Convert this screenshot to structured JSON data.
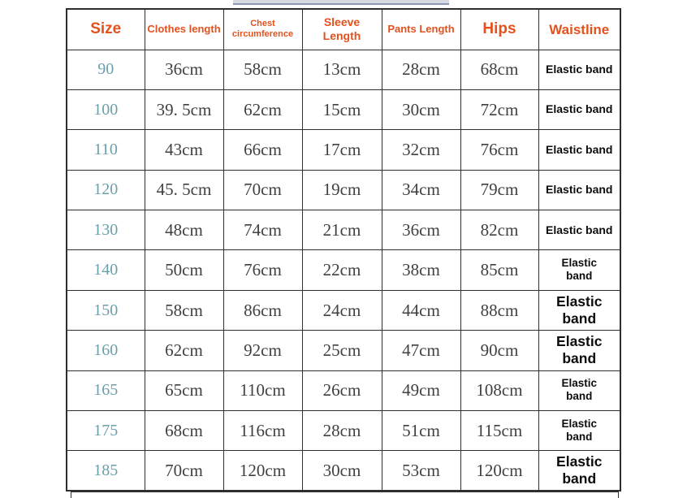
{
  "colors": {
    "header_text": "#e4511d",
    "size_text": "#6a9fac",
    "value_text": "#404040",
    "waistline_text": "#0d0d0d",
    "grid_border": "#2e2e2e",
    "top_bar_fill": "#d7dae2",
    "top_bar_edge": "#8e99b1"
  },
  "table": {
    "columns": [
      {
        "key": "size",
        "label": "Size"
      },
      {
        "key": "clothes_length",
        "label": "Clothes length"
      },
      {
        "key": "chest_circumference",
        "label": "Chest circumference"
      },
      {
        "key": "sleeve_length",
        "label": "Sleeve Length"
      },
      {
        "key": "pants_length",
        "label": "Pants Length"
      },
      {
        "key": "hips",
        "label": "Hips"
      },
      {
        "key": "waistline",
        "label": "Waistline"
      }
    ],
    "rows": [
      {
        "size": "90",
        "clothes_length": "36cm",
        "chest_circumference": "58cm",
        "sleeve_length": "13cm",
        "pants_length": "28cm",
        "hips": "68cm",
        "waistline": "Elastic band",
        "waistline_style": "s1"
      },
      {
        "size": "100",
        "clothes_length": "39. 5cm",
        "chest_circumference": "62cm",
        "sleeve_length": "15cm",
        "pants_length": "30cm",
        "hips": "72cm",
        "waistline": "Elastic band",
        "waistline_style": "s1"
      },
      {
        "size": "110",
        "clothes_length": "43cm",
        "chest_circumference": "66cm",
        "sleeve_length": "17cm",
        "pants_length": "32cm",
        "hips": "76cm",
        "waistline": "Elastic band",
        "waistline_style": "s1"
      },
      {
        "size": "120",
        "clothes_length": "45. 5cm",
        "chest_circumference": "70cm",
        "sleeve_length": "19cm",
        "pants_length": "34cm",
        "hips": "79cm",
        "waistline": "Elastic band",
        "waistline_style": "s1"
      },
      {
        "size": "130",
        "clothes_length": "48cm",
        "chest_circumference": "74cm",
        "sleeve_length": "21cm",
        "pants_length": "36cm",
        "hips": "82cm",
        "waistline": "Elastic band",
        "waistline_style": "s1"
      },
      {
        "size": "140",
        "clothes_length": "50cm",
        "chest_circumference": "76cm",
        "sleeve_length": "22cm",
        "pants_length": "38cm",
        "hips": "85cm",
        "waistline": "Elastic band",
        "waistline_style": "m2"
      },
      {
        "size": "150",
        "clothes_length": "58cm",
        "chest_circumference": "86cm",
        "sleeve_length": "24cm",
        "pants_length": "44cm",
        "hips": "88cm",
        "waistline": "Elastic band",
        "waistline_style": "l2"
      },
      {
        "size": "160",
        "clothes_length": "62cm",
        "chest_circumference": "92cm",
        "sleeve_length": "25cm",
        "pants_length": "47cm",
        "hips": "90cm",
        "waistline": "Elastic band",
        "waistline_style": "l2"
      },
      {
        "size": "165",
        "clothes_length": "65cm",
        "chest_circumference": "110cm",
        "sleeve_length": "26cm",
        "pants_length": "49cm",
        "hips": "108cm",
        "waistline": "Elastic band",
        "waistline_style": "m2"
      },
      {
        "size": "175",
        "clothes_length": "68cm",
        "chest_circumference": "116cm",
        "sleeve_length": "28cm",
        "pants_length": "51cm",
        "hips": "115cm",
        "waistline": "Elastic band",
        "waistline_style": "m2"
      },
      {
        "size": "185",
        "clothes_length": "70cm",
        "chest_circumference": "120cm",
        "sleeve_length": "30cm",
        "pants_length": "53cm",
        "hips": "120cm",
        "waistline": "Elastic band",
        "waistline_style": "l2"
      }
    ]
  }
}
